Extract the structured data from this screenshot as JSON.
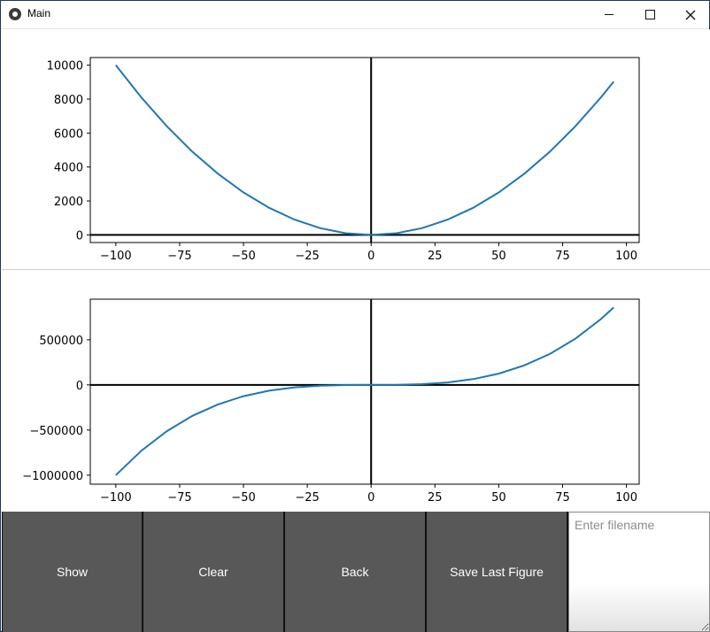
{
  "window": {
    "title": "Main"
  },
  "window_controls": {
    "minimize_icon": "minimize-icon",
    "maximize_icon": "maximize-icon",
    "close_icon": "close-icon"
  },
  "toolbar": {
    "show_label": "Show",
    "clear_label": "Clear",
    "back_label": "Back",
    "save_label": "Save Last Figure",
    "filename_placeholder": "Enter filename",
    "filename_value": ""
  },
  "colors": {
    "series": "#1f77b4",
    "button_bg": "#585858",
    "axes": "#000000"
  },
  "chart_data": [
    {
      "type": "line",
      "title": "",
      "xlabel": "",
      "ylabel": "",
      "xlim": [
        -110,
        105
      ],
      "ylim": [
        -450,
        10450
      ],
      "xticks": [
        -100,
        -75,
        -50,
        -25,
        0,
        25,
        50,
        75,
        100
      ],
      "xtick_labels": [
        "−100",
        "−75",
        "−50",
        "−25",
        "0",
        "25",
        "50",
        "75",
        "100"
      ],
      "yticks": [
        0,
        2000,
        4000,
        6000,
        8000,
        10000
      ],
      "ytick_labels": [
        "0",
        "2000",
        "4000",
        "6000",
        "8000",
        "10000"
      ],
      "axhline": 0,
      "axvline": 0,
      "grid": false,
      "series": [
        {
          "x": [
            -100,
            -90,
            -80,
            -70,
            -60,
            -50,
            -40,
            -30,
            -20,
            -10,
            0,
            10,
            20,
            30,
            40,
            50,
            60,
            70,
            80,
            90,
            95
          ],
          "y": [
            10000,
            8100,
            6400,
            4900,
            3600,
            2500,
            1600,
            900,
            400,
            100,
            0,
            100,
            400,
            900,
            1600,
            2500,
            3600,
            4900,
            6400,
            8100,
            9025
          ]
        }
      ]
    },
    {
      "type": "line",
      "title": "",
      "xlabel": "",
      "ylabel": "",
      "xlim": [
        -110,
        105
      ],
      "ylim": [
        -1100000,
        950000
      ],
      "xticks": [
        -100,
        -75,
        -50,
        -25,
        0,
        25,
        50,
        75,
        100
      ],
      "xtick_labels": [
        "−100",
        "−75",
        "−50",
        "−25",
        "0",
        "25",
        "50",
        "75",
        "100"
      ],
      "yticks": [
        -1000000,
        -500000,
        0,
        500000
      ],
      "ytick_labels": [
        "−1000000",
        "−500000",
        "0",
        "500000"
      ],
      "axhline": 0,
      "axvline": 0,
      "grid": false,
      "series": [
        {
          "x": [
            -100,
            -90,
            -80,
            -70,
            -60,
            -50,
            -40,
            -30,
            -20,
            -10,
            0,
            10,
            20,
            30,
            40,
            50,
            60,
            70,
            80,
            90,
            95
          ],
          "y": [
            -1000000,
            -729000,
            -512000,
            -343000,
            -216000,
            -125000,
            -64000,
            -27000,
            -8000,
            -1000,
            0,
            1000,
            8000,
            27000,
            64000,
            125000,
            216000,
            343000,
            512000,
            729000,
            857375
          ]
        }
      ]
    }
  ]
}
